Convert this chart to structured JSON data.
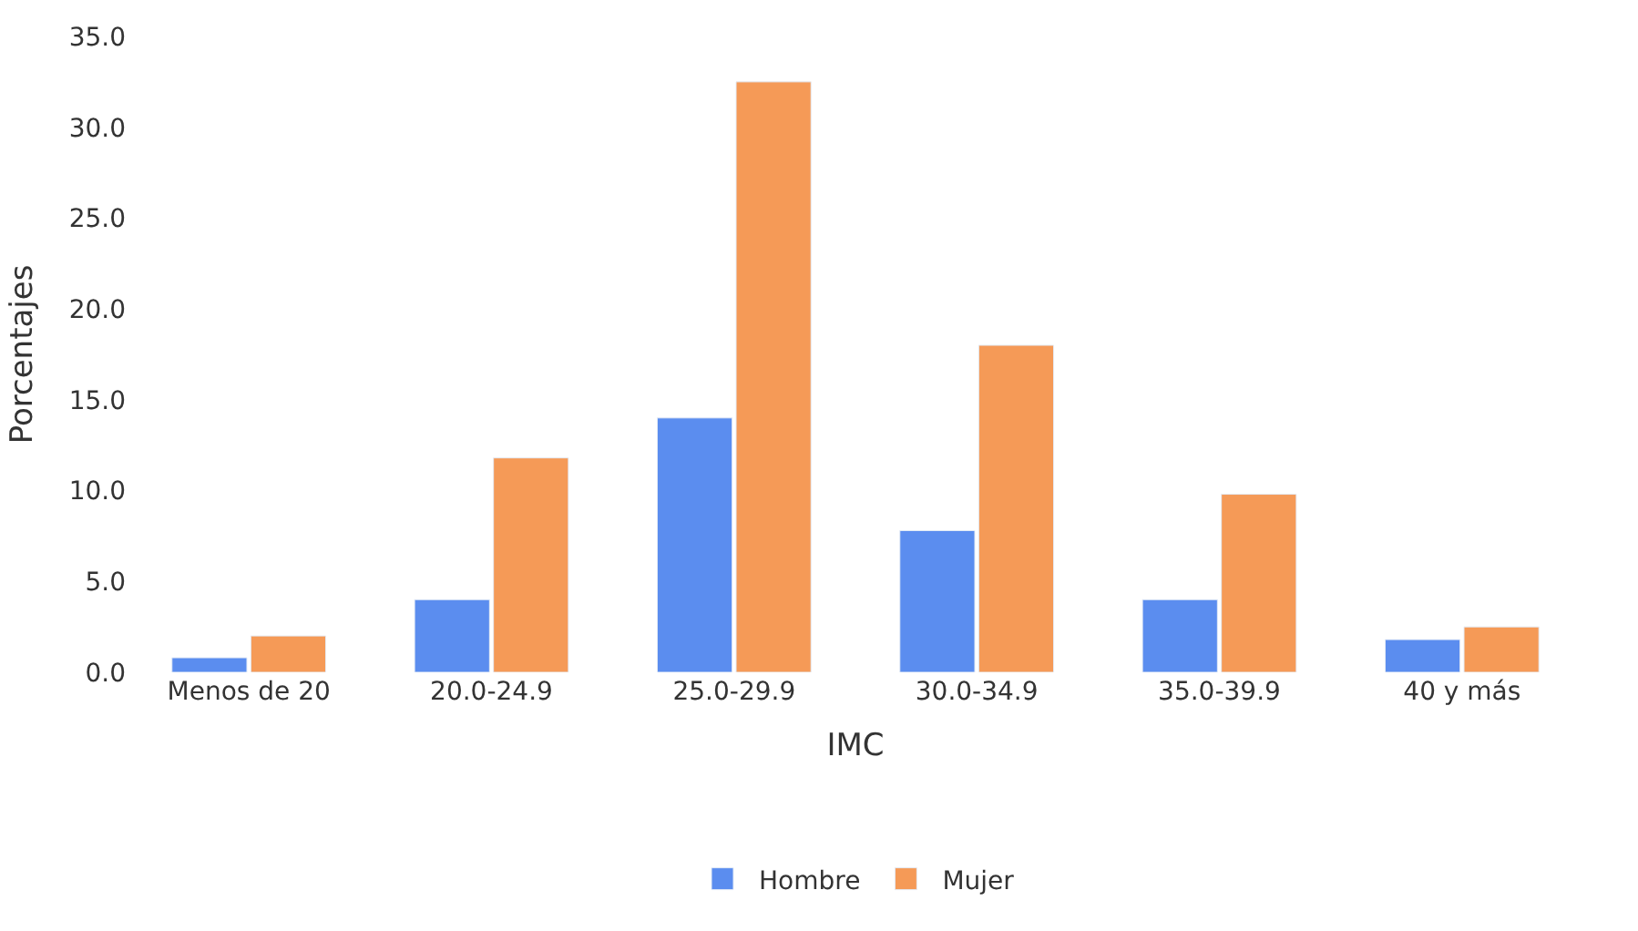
{
  "chart_data": {
    "type": "bar",
    "xlabel": "IMC",
    "ylabel": "Porcentajes",
    "categories": [
      "Menos de 20",
      "20.0-24.9",
      "25.0-29.9",
      "30.0-34.9",
      "35.0-39.9",
      "40 y más"
    ],
    "series": [
      {
        "name": "Hombre",
        "color": "#5b8def",
        "values": [
          0.8,
          4.0,
          14.0,
          7.8,
          4.0,
          1.8
        ]
      },
      {
        "name": "Mujer",
        "color": "#f59a57",
        "values": [
          2.0,
          11.8,
          32.5,
          18.0,
          9.8,
          2.5
        ]
      }
    ],
    "ylim": [
      0,
      35
    ],
    "yticks": [
      {
        "value": 0,
        "label": "0.0"
      },
      {
        "value": 5,
        "label": "5.0"
      },
      {
        "value": 10,
        "label": "10.0"
      },
      {
        "value": 15,
        "label": "15.0"
      },
      {
        "value": 20,
        "label": "20.0"
      },
      {
        "value": 25,
        "label": "25.0"
      },
      {
        "value": 30,
        "label": "30.0"
      },
      {
        "value": 35,
        "label": "35.0"
      }
    ],
    "legend": "bottom"
  }
}
